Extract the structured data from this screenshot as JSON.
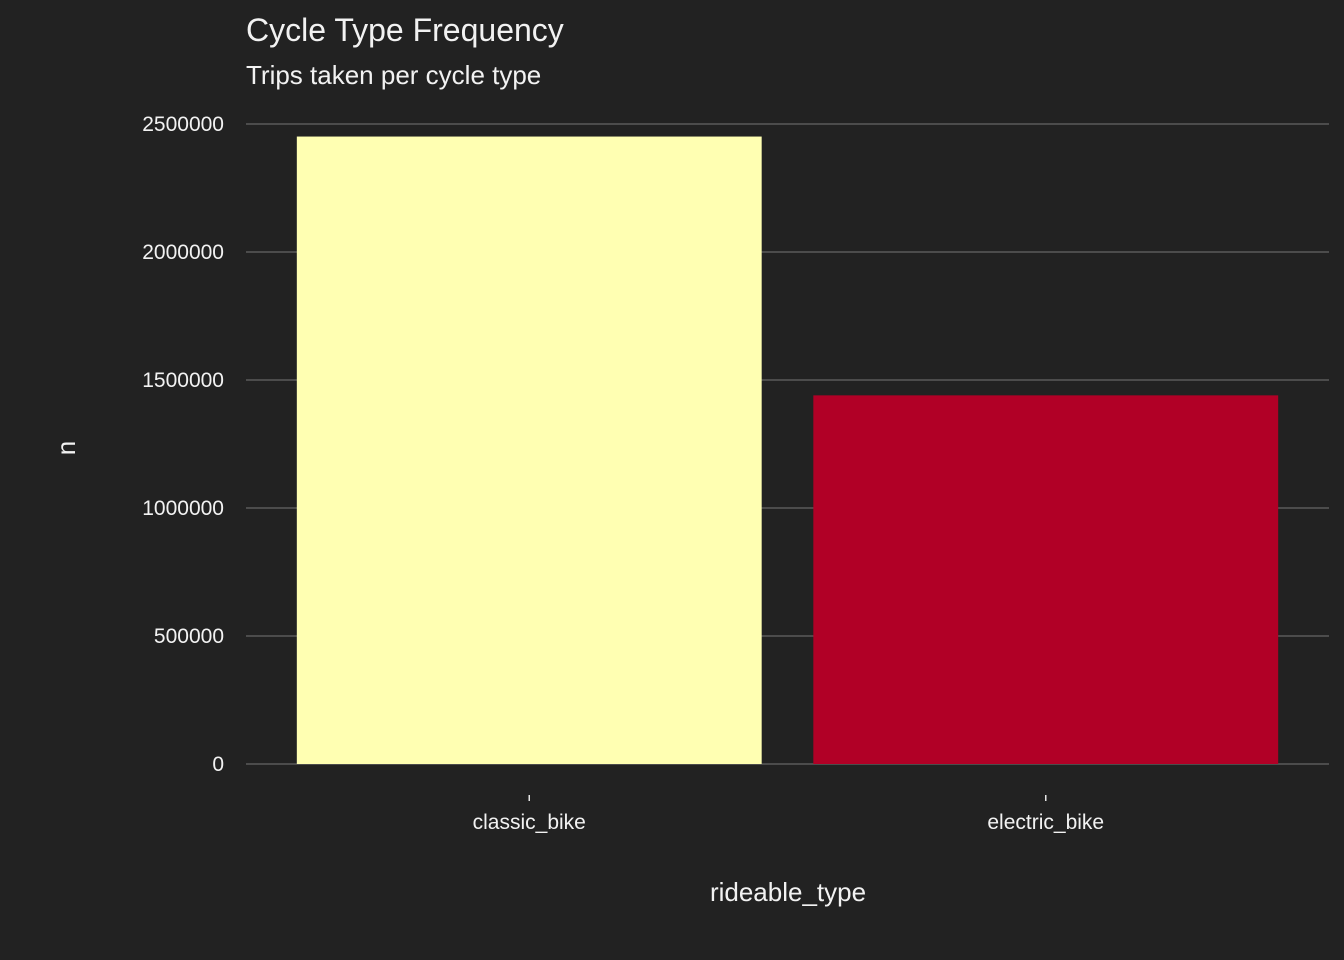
{
  "chart_data": {
    "type": "bar",
    "title": "Cycle Type Frequency",
    "subtitle": "Trips taken per cycle type",
    "xlabel": "rideable_type",
    "ylabel": "n",
    "categories": [
      "classic_bike",
      "electric_bike"
    ],
    "values": [
      2451000,
      1440000
    ],
    "colors": [
      "#FFFFB2",
      "#B10026"
    ],
    "ylim": [
      0,
      2500000
    ],
    "yticks": [
      0,
      500000,
      1000000,
      1500000,
      2000000,
      2500000
    ],
    "ytick_labels": [
      "0",
      "500000",
      "1000000",
      "1500000",
      "2000000",
      "2500000"
    ],
    "grid": true,
    "legend": "none"
  }
}
